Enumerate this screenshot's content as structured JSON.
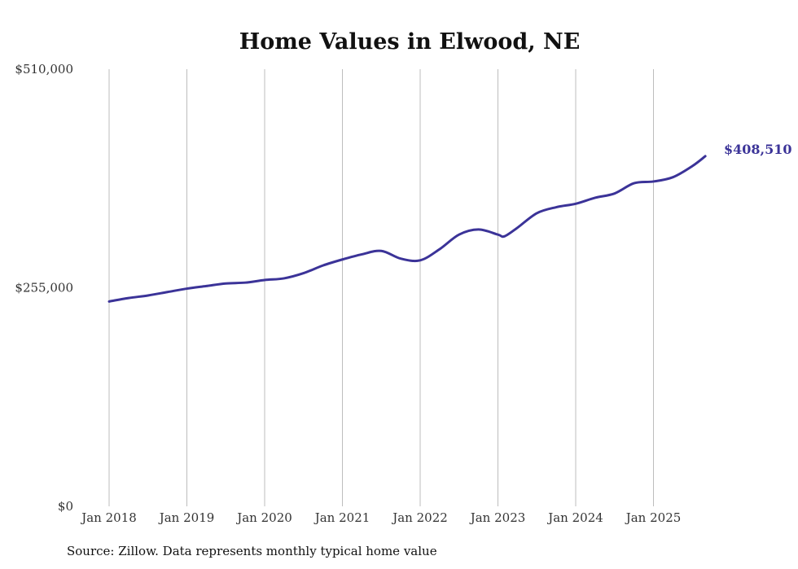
{
  "chart_data": {
    "type": "line",
    "title": "Home Values in Elwood, NE",
    "xlabel": "",
    "ylabel": "",
    "ylim": [
      0,
      510000
    ],
    "yticks": [
      0,
      255000,
      510000
    ],
    "ytick_labels": [
      "$0",
      "$255,000",
      "$510,000"
    ],
    "xticks": [
      "2018-01",
      "2019-01",
      "2020-01",
      "2021-01",
      "2022-01",
      "2023-01",
      "2024-01",
      "2025-01"
    ],
    "xtick_labels": [
      "Jan 2018",
      "Jan 2019",
      "Jan 2020",
      "Jan 2021",
      "Jan 2022",
      "Jan 2023",
      "Jan 2024",
      "Jan 2025"
    ],
    "grid": "vertical",
    "line_color": "#3b3398",
    "series": [
      {
        "name": "Typical home value",
        "x": [
          "2018-01",
          "2018-04",
          "2018-07",
          "2018-10",
          "2019-01",
          "2019-04",
          "2019-07",
          "2019-10",
          "2020-01",
          "2020-04",
          "2020-07",
          "2020-10",
          "2021-01",
          "2021-04",
          "2021-07",
          "2021-10",
          "2022-01",
          "2022-04",
          "2022-07",
          "2022-10",
          "2023-01",
          "2023-02",
          "2023-04",
          "2023-07",
          "2023-10",
          "2024-01",
          "2024-04",
          "2024-07",
          "2024-10",
          "2025-01",
          "2025-04",
          "2025-07",
          "2025-09"
        ],
        "values": [
          239000,
          243000,
          246000,
          250000,
          254000,
          257000,
          260000,
          261000,
          264000,
          266000,
          272000,
          281000,
          288000,
          294000,
          298000,
          289000,
          287000,
          300000,
          317000,
          323000,
          317000,
          315000,
          325000,
          342000,
          349000,
          353000,
          360000,
          365000,
          377000,
          379000,
          384000,
          397000,
          408510
        ]
      }
    ],
    "end_label": "$408,510"
  },
  "source": "Source: Zillow. Data represents monthly typical home value"
}
